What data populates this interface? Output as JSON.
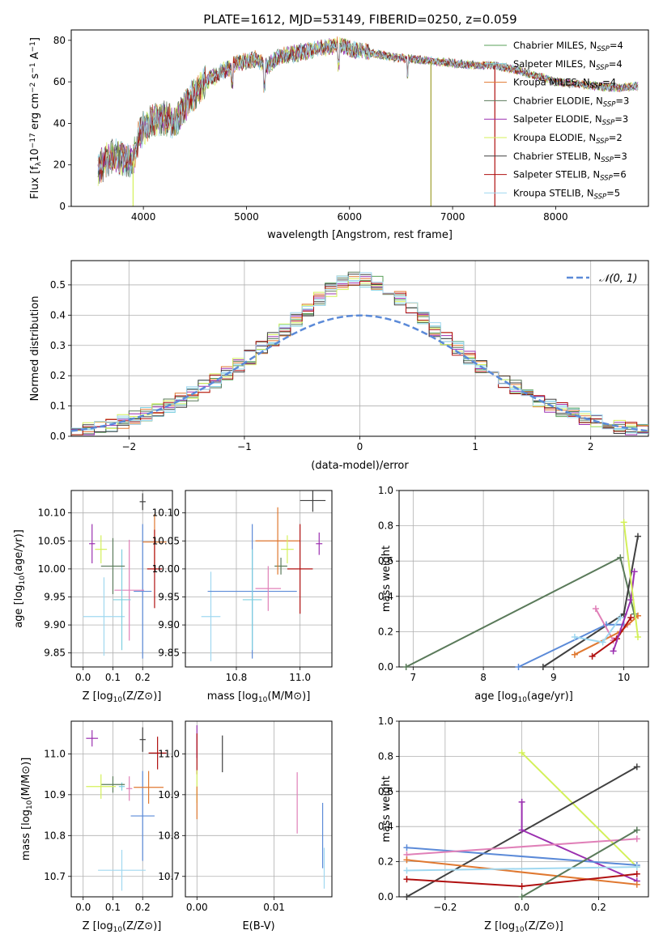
{
  "figure_title": "PLATE=1612, MJD=53149, FIBERID=0250, z=0.059",
  "colors": {
    "Chabrier MILES": "#5aa05a",
    "Salpeter MILES": "#7fd0e0",
    "Kroupa MILES": "#e07830",
    "Chabrier ELODIE": "#5a7a5a",
    "Salpeter ELODIE": "#9b30b0",
    "Kroupa ELODIE": "#d4f05a",
    "Chabrier STELIB": "#404040",
    "Salpeter STELIB": "#b01010",
    "Kroupa STELIB": "#a0d8f0",
    "pink": "#e080b8",
    "blue": "#5b8ad8",
    "normal": "#5b8ad8"
  },
  "chart_data": [
    {
      "id": "spectrum",
      "type": "line",
      "title": "PLATE=1612, MJD=53149, FIBERID=0250, z=0.059",
      "xlabel": "wavelength [Angstrom, rest frame]",
      "ylabel": "Flux [f_λ 10^-17 erg cm^-2 s^-1 A^-1]",
      "xlim": [
        3300,
        8900
      ],
      "ylim": [
        0,
        85
      ],
      "xticks": [
        "4000",
        "5000",
        "6000",
        "7000",
        "8000"
      ],
      "yticks": [
        "0",
        "20",
        "40",
        "60",
        "80"
      ],
      "legend_position": "top-right",
      "legend": [
        {
          "label": "Chabrier MILES, N",
          "sub": "SSP",
          "value": "=4"
        },
        {
          "label": "Salpeter MILES, N",
          "sub": "SSP",
          "value": "=4"
        },
        {
          "label": "Kroupa MILES, N",
          "sub": "SSP",
          "value": "=4"
        },
        {
          "label": "Chabrier ELODIE, N",
          "sub": "SSP",
          "value": "=3"
        },
        {
          "label": "Salpeter ELODIE, N",
          "sub": "SSP",
          "value": "=3"
        },
        {
          "label": "Kroupa ELODIE, N",
          "sub": "SSP",
          "value": "=2"
        },
        {
          "label": "Chabrier STELIB, N",
          "sub": "SSP",
          "value": "=3"
        },
        {
          "label": "Salpeter STELIB, N",
          "sub": "SSP",
          "value": "=6"
        },
        {
          "label": "Kroupa STELIB, N",
          "sub": "SSP",
          "value": "=5"
        }
      ],
      "continuum": [
        [
          3560,
          18
        ],
        [
          3700,
          25
        ],
        [
          3800,
          23
        ],
        [
          3900,
          22
        ],
        [
          3950,
          33
        ],
        [
          4000,
          38
        ],
        [
          4100,
          42
        ],
        [
          4200,
          43
        ],
        [
          4300,
          40
        ],
        [
          4400,
          48
        ],
        [
          4500,
          55
        ],
        [
          4600,
          60
        ],
        [
          4700,
          63
        ],
        [
          4800,
          66
        ],
        [
          4900,
          69
        ],
        [
          5000,
          70
        ],
        [
          5100,
          71
        ],
        [
          5200,
          67
        ],
        [
          5300,
          72
        ],
        [
          5500,
          74
        ],
        [
          5700,
          76
        ],
        [
          5900,
          78
        ],
        [
          6000,
          76
        ],
        [
          6100,
          75
        ],
        [
          6200,
          74
        ],
        [
          6400,
          72
        ],
        [
          6600,
          71
        ],
        [
          6800,
          70
        ],
        [
          7000,
          69
        ],
        [
          7200,
          68
        ],
        [
          7400,
          68
        ],
        [
          7600,
          66
        ],
        [
          7800,
          63
        ],
        [
          8000,
          60
        ],
        [
          8200,
          59
        ],
        [
          8400,
          58
        ],
        [
          8600,
          57
        ],
        [
          8800,
          58
        ]
      ],
      "spikes": [
        [
          3900,
          0
        ],
        [
          6790,
          0
        ],
        [
          7410,
          0
        ]
      ]
    },
    {
      "id": "residuals",
      "type": "area",
      "xlabel": "(data-model)/error",
      "ylabel": "Normed distribution",
      "xlim": [
        -2.5,
        2.5
      ],
      "ylim": [
        0,
        0.58
      ],
      "xticks": [
        "−2",
        "−1",
        "0",
        "1",
        "2"
      ],
      "yticks": [
        "0.0",
        "0.1",
        "0.2",
        "0.3",
        "0.4",
        "0.5"
      ],
      "grid": true,
      "legend_position": "top-right",
      "legend": "𝒩(0, 1)",
      "bin_width": 0.1,
      "curve": "normal pdf, mean 0, sigma 1"
    },
    {
      "id": "age_vs_Z",
      "type": "scatter",
      "xlabel": "Z [log10(Z/Z⊙)]",
      "ylabel": "age  [log10(age/yr)]",
      "xlim": [
        -0.04,
        0.3
      ],
      "ylim": [
        9.825,
        10.14
      ],
      "xticks": [
        "0.0",
        "0.1",
        "0.2"
      ],
      "yticks": [
        "9.85",
        "9.90",
        "9.95",
        "10.00",
        "10.05",
        "10.10"
      ],
      "grid": true,
      "points": [
        {
          "s": "Kroupa STELIB",
          "x": 0.07,
          "y": 9.915,
          "xe": 0.07,
          "ye": 0.07
        },
        {
          "s": "blue",
          "x": 0.2,
          "y": 9.96,
          "xe": 0.03,
          "ye": 0.12
        },
        {
          "s": "pink",
          "x": 0.155,
          "y": 9.962,
          "xe": 0.05,
          "ye": 0.09
        },
        {
          "s": "Salpeter MILES",
          "x": 0.13,
          "y": 9.945,
          "xe": 0.03,
          "ye": 0.09
        },
        {
          "s": "Chabrier ELODIE",
          "x": 0.1,
          "y": 10.005,
          "xe": 0.04,
          "ye": 0.05
        },
        {
          "s": "Kroupa MILES",
          "x": 0.24,
          "y": 10.048,
          "xe": 0.04,
          "ye": 0.05
        },
        {
          "s": "Salpeter STELIB",
          "x": 0.24,
          "y": 10.0,
          "xe": 0.025,
          "ye": 0.07
        },
        {
          "s": "Chabrier STELIB",
          "x": 0.2,
          "y": 10.12,
          "xe": 0.01,
          "ye": 0.015
        },
        {
          "s": "Salpeter ELODIE",
          "x": 0.03,
          "y": 10.045,
          "xe": 0.01,
          "ye": 0.035
        },
        {
          "s": "Kroupa ELODIE",
          "x": 0.06,
          "y": 10.035,
          "xe": 0.02,
          "ye": 0.025
        }
      ]
    },
    {
      "id": "age_vs_mass",
      "type": "scatter",
      "xlabel": "mass [log10(M/M⊙)]",
      "ylabel": "",
      "xlim": [
        10.64,
        11.1
      ],
      "ylim": [
        9.825,
        10.14
      ],
      "xticks": [
        "10.8",
        "11.0"
      ],
      "yticks": [
        "9.85",
        "9.90",
        "9.95",
        "10.00",
        "10.05",
        "10.10"
      ],
      "grid": true,
      "points": [
        {
          "s": "Kroupa STELIB",
          "x": 10.72,
          "y": 9.915,
          "xe": 0.03,
          "ye": 0.08
        },
        {
          "s": "blue",
          "x": 10.85,
          "y": 9.96,
          "xe": 0.14,
          "ye": 0.12
        },
        {
          "s": "pink",
          "x": 10.9,
          "y": 9.965,
          "xe": 0.04,
          "ye": 0.04
        },
        {
          "s": "Salpeter MILES",
          "x": 10.85,
          "y": 9.945,
          "xe": 0.03,
          "ye": 0.09
        },
        {
          "s": "Chabrier ELODIE",
          "x": 10.94,
          "y": 10.005,
          "xe": 0.02,
          "ye": 0.015
        },
        {
          "s": "Kroupa MILES",
          "x": 10.93,
          "y": 10.05,
          "xe": 0.07,
          "ye": 0.06
        },
        {
          "s": "Salpeter STELIB",
          "x": 11.0,
          "y": 10.0,
          "xe": 0.04,
          "ye": 0.08
        },
        {
          "s": "Chabrier STELIB",
          "x": 11.04,
          "y": 10.122,
          "xe": 0.04,
          "ye": 0.02
        },
        {
          "s": "Salpeter ELODIE",
          "x": 11.06,
          "y": 10.045,
          "xe": 0.01,
          "ye": 0.02
        },
        {
          "s": "Kroupa ELODIE",
          "x": 10.96,
          "y": 10.035,
          "xe": 0.02,
          "ye": 0.025
        }
      ]
    },
    {
      "id": "weight_vs_age",
      "type": "line",
      "xlabel": "age  [log10(age/yr)]",
      "ylabel": "mass weight",
      "xlim": [
        6.8,
        10.35
      ],
      "ylim": [
        0,
        1.0
      ],
      "xticks": [
        "7",
        "8",
        "9",
        "10"
      ],
      "yticks": [
        "0.0",
        "0.2",
        "0.4",
        "0.6",
        "0.8",
        "1.0"
      ],
      "grid": true,
      "series": [
        {
          "s": "Chabrier ELODIE",
          "x": [
            6.9,
            9.95,
            10.15
          ],
          "y": [
            0.0,
            0.62,
            0.3
          ]
        },
        {
          "s": "Chabrier STELIB",
          "x": [
            8.85,
            10.0,
            10.2
          ],
          "y": [
            0.0,
            0.3,
            0.74
          ]
        },
        {
          "s": "blue",
          "x": [
            8.5,
            9.75,
            10.0
          ],
          "y": [
            0.0,
            0.24,
            0.24
          ]
        },
        {
          "s": "pink",
          "x": [
            9.6,
            9.85,
            10.05
          ],
          "y": [
            0.33,
            0.15,
            0.24
          ]
        },
        {
          "s": "Kroupa MILES",
          "x": [
            9.3,
            9.95,
            10.2
          ],
          "y": [
            0.07,
            0.2,
            0.29
          ]
        },
        {
          "s": "Salpeter STELIB",
          "x": [
            9.55,
            9.9,
            10.1
          ],
          "y": [
            0.06,
            0.16,
            0.28
          ]
        },
        {
          "s": "Salpeter ELODIE",
          "x": [
            9.85,
            10.1,
            10.15
          ],
          "y": [
            0.09,
            0.38,
            0.54
          ]
        },
        {
          "s": "Kroupa ELODIE",
          "x": [
            10.0,
            10.2
          ],
          "y": [
            0.82,
            0.17
          ]
        },
        {
          "s": "Kroupa STELIB",
          "x": [
            9.3,
            9.7,
            9.95
          ],
          "y": [
            0.17,
            0.14,
            0.28
          ]
        }
      ]
    },
    {
      "id": "mass_vs_Z",
      "type": "scatter",
      "xlabel": "Z [log10(Z/Z⊙)]",
      "ylabel": "mass [log10(M/M⊙)]",
      "xlim": [
        -0.04,
        0.3
      ],
      "ylim": [
        10.65,
        11.08
      ],
      "xticks": [
        "0.0",
        "0.1",
        "0.2"
      ],
      "yticks": [
        "10.7",
        "10.8",
        "10.9",
        "11.0"
      ],
      "grid": true,
      "points": [
        {
          "s": "Kroupa STELIB",
          "x": 0.13,
          "y": 10.715,
          "xe": 0.08,
          "ye": 0.05
        },
        {
          "s": "blue",
          "x": 0.2,
          "y": 10.848,
          "xe": 0.04,
          "ye": 0.11
        },
        {
          "s": "pink",
          "x": 0.155,
          "y": 10.915,
          "xe": 0.01,
          "ye": 0.03
        },
        {
          "s": "Salpeter MILES",
          "x": 0.13,
          "y": 10.92,
          "xe": 0.01,
          "ye": 0.01
        },
        {
          "s": "Chabrier ELODIE",
          "x": 0.1,
          "y": 10.925,
          "xe": 0.04,
          "ye": 0.02
        },
        {
          "s": "Kroupa MILES",
          "x": 0.22,
          "y": 10.918,
          "xe": 0.05,
          "ye": 0.04
        },
        {
          "s": "Salpeter STELIB",
          "x": 0.25,
          "y": 11.002,
          "xe": 0.03,
          "ye": 0.04
        },
        {
          "s": "Chabrier STELIB",
          "x": 0.2,
          "y": 11.035,
          "xe": 0.01,
          "ye": 0.03
        },
        {
          "s": "Salpeter ELODIE",
          "x": 0.03,
          "y": 11.038,
          "xe": 0.02,
          "ye": 0.02
        },
        {
          "s": "Kroupa ELODIE",
          "x": 0.06,
          "y": 10.92,
          "xe": 0.05,
          "ye": 0.03
        }
      ]
    },
    {
      "id": "mass_vs_ebv",
      "type": "scatter",
      "xlabel": "E(B-V)",
      "ylabel": "",
      "xlim": [
        -0.0015,
        0.0175
      ],
      "ylim": [
        10.65,
        11.08
      ],
      "xticks": [
        "0.00",
        "0.01"
      ],
      "yticks": [
        "10.7",
        "10.8",
        "10.9",
        "11.0"
      ],
      "grid": true,
      "points": [
        {
          "s": "Salpeter ELODIE",
          "x": 0.0,
          "y": 11.03,
          "xe": 0.0,
          "ye": 0.04
        },
        {
          "s": "Salpeter STELIB",
          "x": 0.0,
          "y": 11.0,
          "xe": 0.0,
          "ye": 0.05
        },
        {
          "s": "Kroupa ELODIE",
          "x": 0.0,
          "y": 10.92,
          "xe": 0.0,
          "ye": 0.04
        },
        {
          "s": "Kroupa MILES",
          "x": 0.0,
          "y": 10.88,
          "xe": 0.0,
          "ye": 0.04
        },
        {
          "s": "Chabrier STELIB",
          "x": 0.0033,
          "y": 11.0,
          "xe": 0.0,
          "ye": 0.045
        },
        {
          "s": "pink",
          "x": 0.013,
          "y": 10.88,
          "xe": 0.0,
          "ye": 0.075
        },
        {
          "s": "Kroupa STELIB",
          "x": 0.0165,
          "y": 10.72,
          "xe": 0.0,
          "ye": 0.05
        },
        {
          "s": "blue",
          "x": 0.0163,
          "y": 10.8,
          "xe": 0.0,
          "ye": 0.08
        }
      ]
    },
    {
      "id": "weight_vs_Z",
      "type": "line",
      "xlabel": "Z [log10(Z/Z⊙)]",
      "ylabel": "mass weight",
      "xlim": [
        -0.32,
        0.33
      ],
      "ylim": [
        0,
        1.0
      ],
      "xticks": [
        "−0.2",
        "0.0",
        "0.2"
      ],
      "yticks": [
        "0.0",
        "0.2",
        "0.4",
        "0.6",
        "0.8",
        "1.0"
      ],
      "grid": true,
      "series": [
        {
          "s": "Kroupa ELODIE",
          "x": [
            0.0,
            0.3
          ],
          "y": [
            0.82,
            0.17
          ]
        },
        {
          "s": "Chabrier STELIB",
          "x": [
            -0.3,
            0.3
          ],
          "y": [
            0.0,
            0.74
          ]
        },
        {
          "s": "Salpeter ELODIE",
          "x": [
            0.0,
            0.0,
            0.3
          ],
          "y": [
            0.54,
            0.38,
            0.09
          ]
        },
        {
          "s": "blue",
          "x": [
            -0.3,
            0.3
          ],
          "y": [
            0.28,
            0.18
          ]
        },
        {
          "s": "pink",
          "x": [
            -0.3,
            0.3
          ],
          "y": [
            0.24,
            0.33
          ]
        },
        {
          "s": "Kroupa MILES",
          "x": [
            -0.3,
            0.3
          ],
          "y": [
            0.21,
            0.07
          ]
        },
        {
          "s": "Salpeter STELIB",
          "x": [
            -0.3,
            0.0,
            0.3
          ],
          "y": [
            0.1,
            0.06,
            0.13
          ]
        },
        {
          "s": "Chabrier ELODIE",
          "x": [
            0.0,
            0.3
          ],
          "y": [
            0.0,
            0.38
          ]
        },
        {
          "s": "Kroupa STELIB",
          "x": [
            -0.3,
            0.3
          ],
          "y": [
            0.15,
            0.17
          ]
        }
      ]
    }
  ]
}
